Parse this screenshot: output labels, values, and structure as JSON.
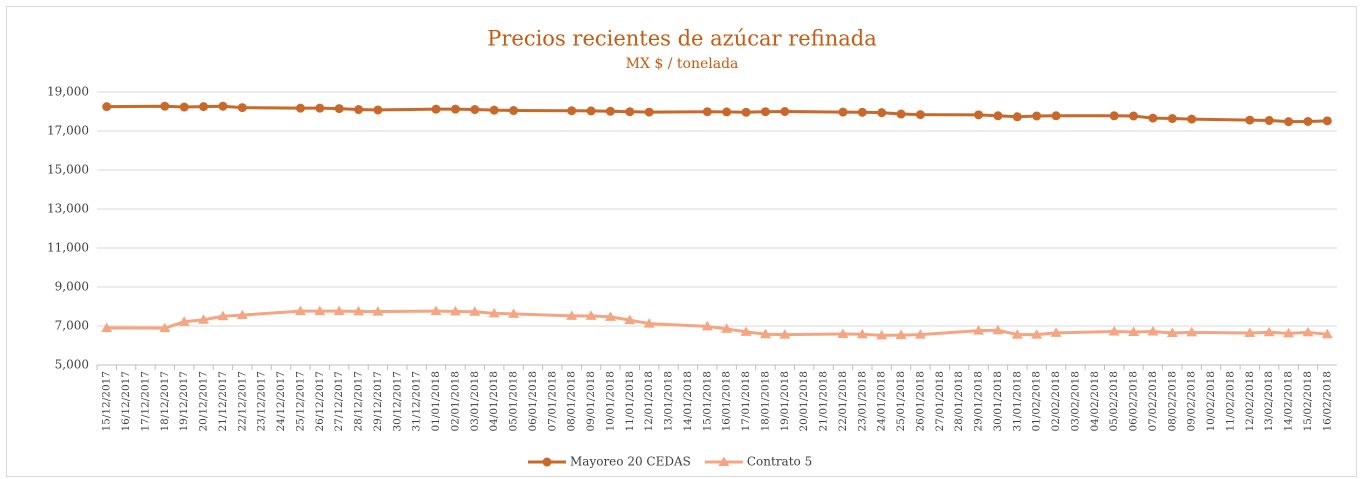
{
  "chart_data": {
    "type": "line",
    "title": "Precios recientes de azúcar refinada",
    "subtitle": "MX $ / tonelada",
    "xticks": [
      "15/12/2017",
      "16/12/2017",
      "17/12/2017",
      "18/12/2017",
      "19/12/2017",
      "20/12/2017",
      "21/12/2017",
      "22/12/2017",
      "23/12/2017",
      "24/12/2017",
      "25/12/2017",
      "26/12/2017",
      "27/12/2017",
      "28/12/2017",
      "29/12/2017",
      "30/12/2017",
      "31/12/2017",
      "01/01/2018",
      "02/01/2018",
      "03/01/2018",
      "04/01/2018",
      "05/01/2018",
      "06/01/2018",
      "07/01/2018",
      "08/01/2018",
      "09/01/2018",
      "10/01/2018",
      "11/01/2018",
      "12/01/2018",
      "13/01/2018",
      "14/01/2018",
      "15/01/2018",
      "16/01/2018",
      "17/01/2018",
      "18/01/2018",
      "19/01/2018",
      "20/01/2018",
      "21/01/2018",
      "22/01/2018",
      "23/01/2018",
      "24/01/2018",
      "25/01/2018",
      "26/01/2018",
      "27/01/2018",
      "28/01/2018",
      "29/01/2018",
      "30/01/2018",
      "31/01/2018",
      "01/02/2018",
      "02/02/2018",
      "03/02/2018",
      "04/02/2018",
      "05/02/2018",
      "06/02/2018",
      "07/02/2018",
      "08/02/2018",
      "09/02/2018",
      "10/02/2018",
      "11/02/2018",
      "12/02/2018",
      "13/02/2018",
      "14/02/2018",
      "15/02/2018",
      "16/02/2018"
    ],
    "x": [
      "15/12/2017",
      "18/12/2017",
      "19/12/2017",
      "20/12/2017",
      "21/12/2017",
      "22/12/2017",
      "25/12/2017",
      "26/12/2017",
      "27/12/2017",
      "28/12/2017",
      "29/12/2017",
      "01/01/2018",
      "02/01/2018",
      "03/01/2018",
      "04/01/2018",
      "05/01/2018",
      "08/01/2018",
      "09/01/2018",
      "10/01/2018",
      "11/01/2018",
      "12/01/2018",
      "15/01/2018",
      "16/01/2018",
      "17/01/2018",
      "18/01/2018",
      "19/01/2018",
      "22/01/2018",
      "23/01/2018",
      "24/01/2018",
      "25/01/2018",
      "26/01/2018",
      "29/01/2018",
      "30/01/2018",
      "31/01/2018",
      "01/02/2018",
      "02/02/2018",
      "05/02/2018",
      "06/02/2018",
      "07/02/2018",
      "08/02/2018",
      "09/02/2018",
      "12/02/2018",
      "13/02/2018",
      "14/02/2018",
      "15/02/2018",
      "16/02/2018"
    ],
    "series": [
      {
        "name": "Mayoreo 20 CEDAS",
        "color": "#c8692b",
        "marker": "circle",
        "values": [
          18250,
          18270,
          18230,
          18250,
          18270,
          18200,
          18170,
          18170,
          18150,
          18100,
          18080,
          18120,
          18120,
          18100,
          18070,
          18050,
          18040,
          18030,
          18010,
          17990,
          17970,
          17990,
          17980,
          17960,
          17990,
          18000,
          17970,
          17960,
          17940,
          17870,
          17840,
          17830,
          17780,
          17730,
          17770,
          17780,
          17780,
          17770,
          17660,
          17640,
          17610,
          17560,
          17540,
          17480,
          17490,
          17520
        ]
      },
      {
        "name": "Contrato 5",
        "color": "#f4a582",
        "marker": "triangle",
        "values": [
          6900,
          6890,
          7220,
          7320,
          7500,
          7560,
          7760,
          7760,
          7760,
          7750,
          7740,
          7760,
          7750,
          7730,
          7650,
          7620,
          7520,
          7520,
          7470,
          7300,
          7120,
          6980,
          6850,
          6700,
          6580,
          6560,
          6590,
          6580,
          6520,
          6530,
          6560,
          6760,
          6780,
          6560,
          6560,
          6650,
          6720,
          6690,
          6720,
          6640,
          6670,
          6640,
          6680,
          6620,
          6670,
          6580
        ]
      }
    ],
    "ylim": [
      5000,
      19000
    ],
    "yticks": [
      {
        "value": 5000,
        "label": "5,000"
      },
      {
        "value": 7000,
        "label": "7,000"
      },
      {
        "value": 9000,
        "label": "9,000"
      },
      {
        "value": 11000,
        "label": "11,000"
      },
      {
        "value": 13000,
        "label": "13,000"
      },
      {
        "value": 15000,
        "label": "15,000"
      },
      {
        "value": 17000,
        "label": "17,000"
      },
      {
        "value": 19000,
        "label": "19,000"
      }
    ],
    "grid": true,
    "legend": "bottom"
  }
}
